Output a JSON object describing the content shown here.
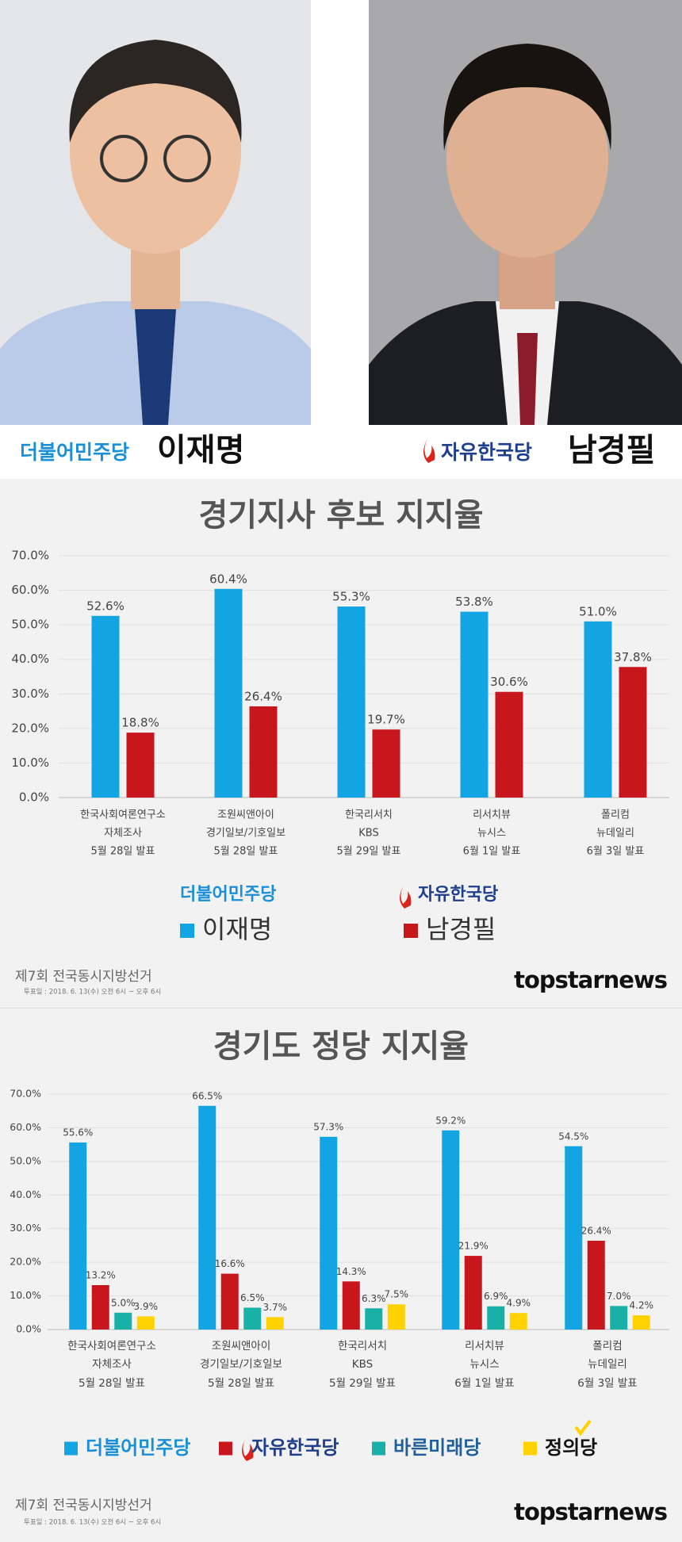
{
  "header": {
    "candidates": [
      {
        "party": "더불어민주당",
        "name": "이재명"
      },
      {
        "party": "자유한국당",
        "name": "남경필"
      }
    ]
  },
  "chart_data": [
    {
      "type": "bar",
      "title": "경기지사 후보 지지율",
      "categories": [
        [
          "한국사회여론연구소",
          "자체조사",
          "5월 28일 발표"
        ],
        [
          "조원씨앤아이",
          "경기일보/기호일보",
          "5월 28일 발표"
        ],
        [
          "한국리서치",
          "KBS",
          "5월 29일 발표"
        ],
        [
          "리서치뷰",
          "뉴시스",
          "6월 1일 발표"
        ],
        [
          "폴리컴",
          "뉴데일리",
          "6월 3일 발표"
        ]
      ],
      "series": [
        {
          "name": "이재명",
          "party": "더불어민주당",
          "color": "#12a4e3",
          "values": [
            52.6,
            60.4,
            55.3,
            53.8,
            51.0
          ],
          "value_labels": [
            "52.6%",
            "60.4%",
            "55.3%",
            "53.8%",
            "51.0%"
          ]
        },
        {
          "name": "남경필",
          "party": "자유한국당",
          "color": "#c8161d",
          "values": [
            18.8,
            26.4,
            19.7,
            30.6,
            37.8
          ],
          "value_labels": [
            "18.8%",
            "26.4%",
            "19.7%",
            "30.6%",
            "37.8%"
          ]
        }
      ],
      "ylim": [
        0,
        70
      ],
      "yticks": [
        {
          "value": 0,
          "label": "0.0%"
        },
        {
          "value": 10,
          "label": "10.0%"
        },
        {
          "value": 20,
          "label": "20.0%"
        },
        {
          "value": 30,
          "label": "30.0%"
        },
        {
          "value": 40,
          "label": "40.0%"
        },
        {
          "value": 50,
          "label": "50.0%"
        },
        {
          "value": 60,
          "label": "60.0%"
        },
        {
          "value": 70,
          "label": "70.0%"
        }
      ],
      "grid": true,
      "footer": {
        "election": "제7회 전국동시지방선거",
        "date": "투표일 : 2018. 6. 13(수) 오전 6시 ~ 오후 6시",
        "brand": "topstarnews"
      }
    },
    {
      "type": "bar",
      "title": "경기도 정당 지지율",
      "categories": [
        [
          "한국사회여론연구소",
          "자체조사",
          "5월 28일 발표"
        ],
        [
          "조원씨앤아이",
          "경기일보/기호일보",
          "5월 28일 발표"
        ],
        [
          "한국리서치",
          "KBS",
          "5월 29일 발표"
        ],
        [
          "리서치뷰",
          "뉴시스",
          "6월 1일 발표"
        ],
        [
          "폴리컴",
          "뉴데일리",
          "6월 3일 발표"
        ]
      ],
      "series": [
        {
          "name": "더불어민주당",
          "color": "#12a4e3",
          "values": [
            55.6,
            66.5,
            57.3,
            59.2,
            54.5
          ],
          "value_labels": [
            "55.6%",
            "66.5%",
            "57.3%",
            "59.2%",
            "54.5%"
          ]
        },
        {
          "name": "자유한국당",
          "color": "#c8161d",
          "values": [
            13.2,
            16.6,
            14.3,
            21.9,
            26.4
          ],
          "value_labels": [
            "13.2%",
            "16.6%",
            "14.3%",
            "21.9%",
            "26.4%"
          ]
        },
        {
          "name": "바른미래당",
          "color": "#19b0a8",
          "values": [
            5.0,
            6.5,
            6.3,
            6.9,
            7.0
          ],
          "value_labels": [
            "5.0%",
            "6.5%",
            "6.3%",
            "6.9%",
            "7.0%"
          ]
        },
        {
          "name": "정의당",
          "color": "#ffd200",
          "values": [
            3.9,
            3.7,
            7.5,
            4.9,
            4.2
          ],
          "value_labels": [
            "3.9%",
            "3.7%",
            "7.5%",
            "4.9%",
            "4.2%"
          ]
        }
      ],
      "ylim": [
        0,
        70
      ],
      "yticks": [
        {
          "value": 0,
          "label": "0.0%"
        },
        {
          "value": 10,
          "label": "10.0%"
        },
        {
          "value": 20,
          "label": "20.0%"
        },
        {
          "value": 30,
          "label": "30.0%"
        },
        {
          "value": 40,
          "label": "40.0%"
        },
        {
          "value": 50,
          "label": "50.0%"
        },
        {
          "value": 60,
          "label": "60.0%"
        },
        {
          "value": 70,
          "label": "70.0%"
        }
      ],
      "grid": true,
      "footer": {
        "election": "제7회 전국동시지방선거",
        "date": "투표일 : 2018. 6. 13(수) 오전 6시 ~ 오후 6시",
        "brand": "topstarnews"
      }
    }
  ]
}
